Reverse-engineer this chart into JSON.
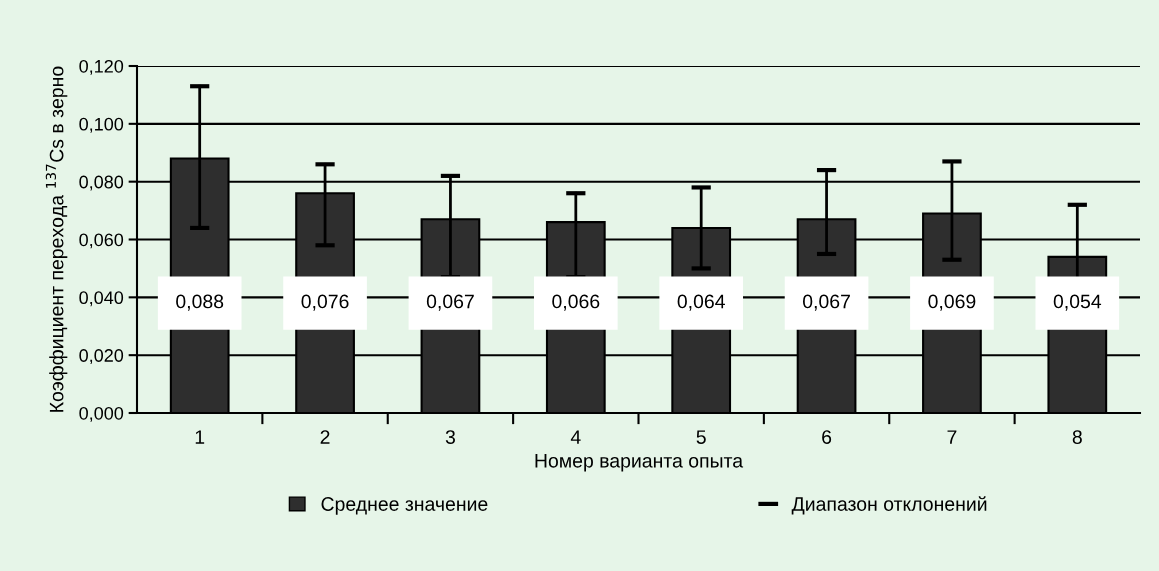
{
  "chart_data": {
    "type": "bar",
    "xlabel": "Номер варианта опыта",
    "ylabel": "Коэффициент перехода $^{137}$Cs в зерно",
    "categories": [
      "1",
      "2",
      "3",
      "4",
      "5",
      "6",
      "7",
      "8"
    ],
    "series": [
      {
        "name": "Среднее значение",
        "color": "#2e2e2e",
        "values": [
          0.088,
          0.076,
          0.067,
          0.066,
          0.064,
          0.067,
          0.069,
          0.054
        ],
        "errors": [
          [
            0.064,
            0.113
          ],
          [
            0.058,
            0.086
          ],
          [
            0.047,
            0.082
          ],
          [
            0.047,
            0.076
          ],
          [
            0.05,
            0.078
          ],
          [
            0.055,
            0.084
          ],
          [
            0.053,
            0.087
          ],
          [
            0.036,
            0.072
          ]
        ],
        "value_labels": [
          "0,088",
          "0,076",
          "0,067",
          "0,066",
          "0,064",
          "0,067",
          "0,069",
          "0,054"
        ]
      }
    ],
    "ylim": [
      0,
      0.12
    ],
    "yticks": [
      {
        "value": 0,
        "label": "0,000"
      },
      {
        "value": 0.02,
        "label": "0,020"
      },
      {
        "value": 0.04,
        "label": "0,040"
      },
      {
        "value": 0.06,
        "label": "0,060"
      },
      {
        "value": 0.08,
        "label": "0,080"
      },
      {
        "value": 0.1,
        "label": "0,100"
      },
      {
        "value": 0.12,
        "label": "0,120"
      }
    ],
    "grid": "y",
    "legend": "bottom",
    "annotations": [
      "Диапазон отклонений"
    ]
  }
}
